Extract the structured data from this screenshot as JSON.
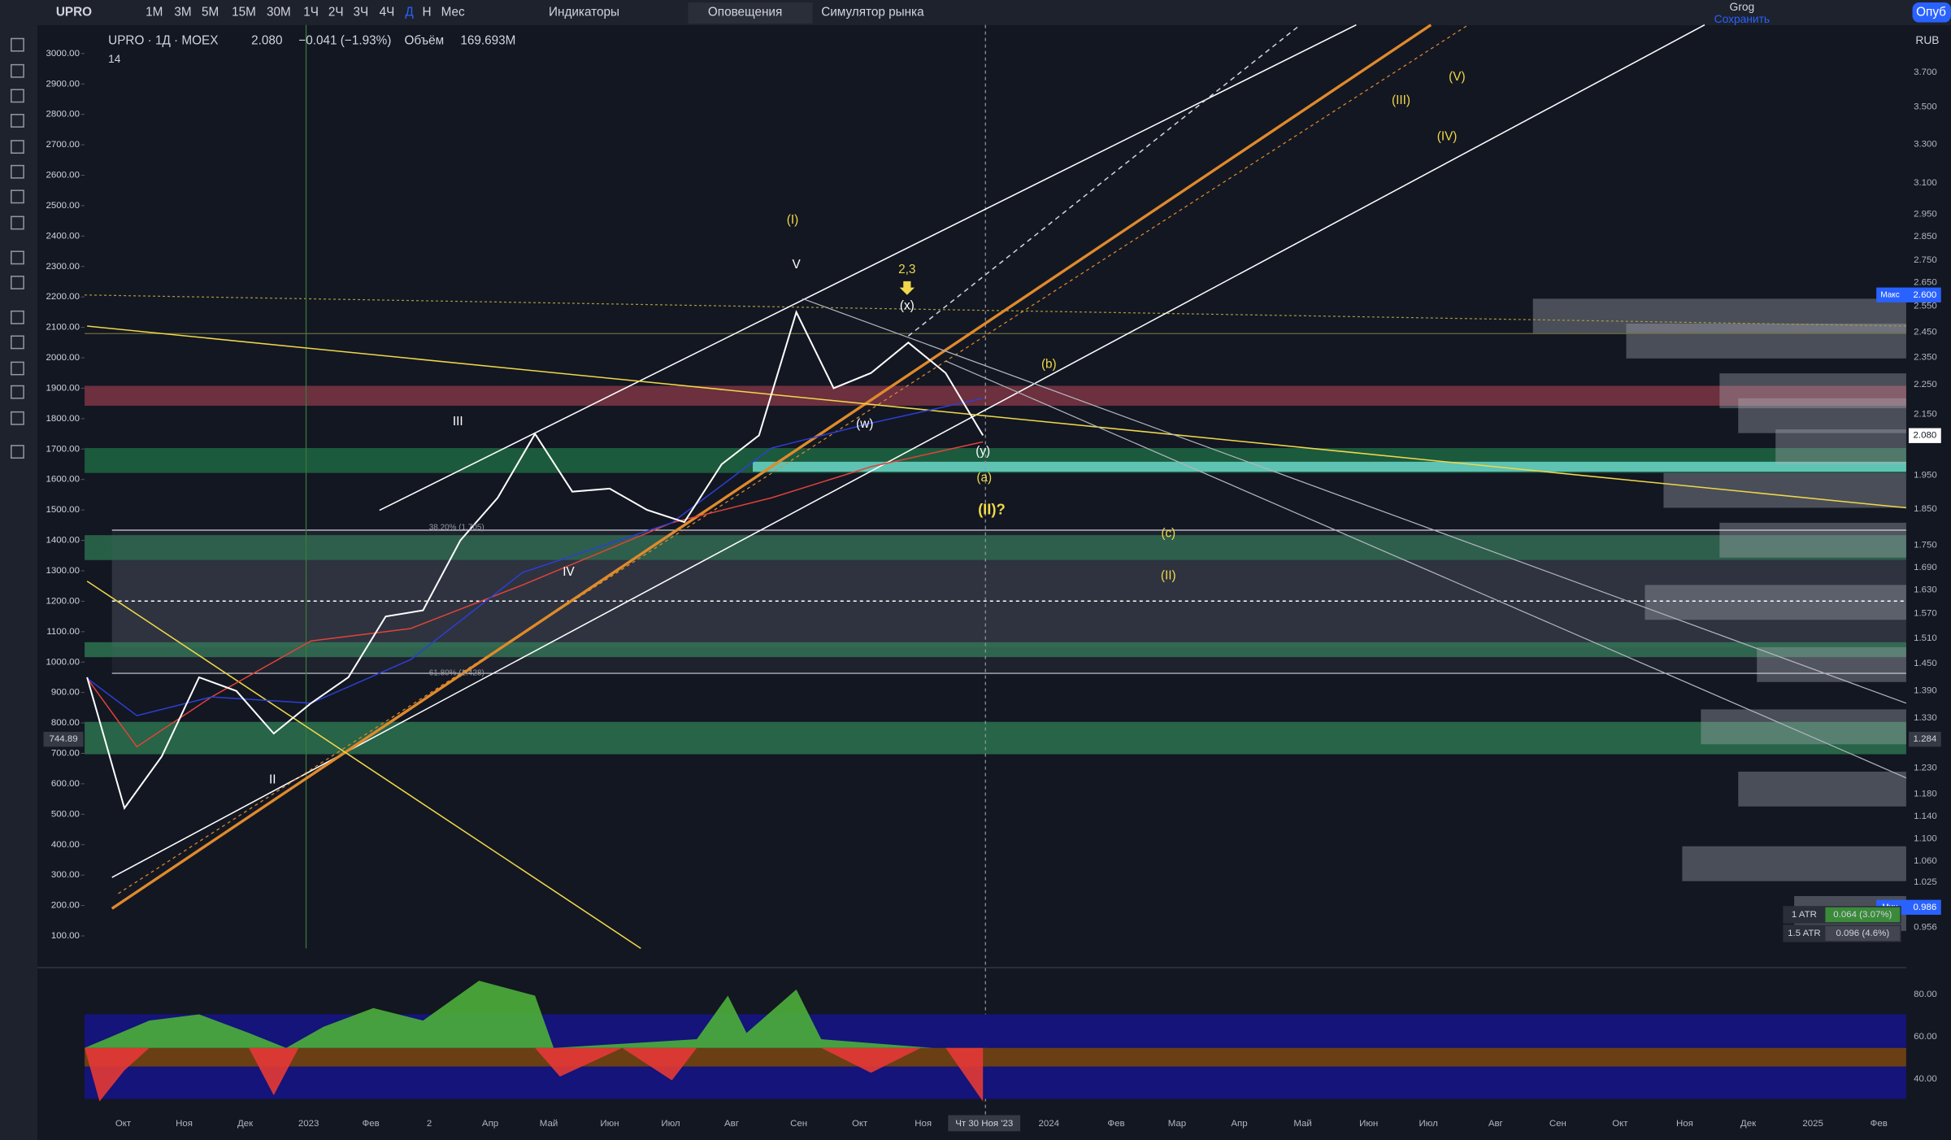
{
  "toolbar": {
    "symbol": "UPRO",
    "intervals": [
      "1М",
      "3М",
      "5М",
      "15М",
      "30М",
      "1Ч",
      "2Ч",
      "3Ч",
      "4Ч",
      "Д",
      "Н",
      "Мес"
    ],
    "indicators": "Индикаторы",
    "alerts": "Оповещения",
    "replay": "Симулятор рынка",
    "user": "Grog",
    "save": "Сохранить",
    "publish": "Опуб",
    "currency": "RUB"
  },
  "legend": {
    "symbol": "UPRO · 1Д · MOEX",
    "price": "2.080",
    "change": "−0.041 (−1.93%)",
    "volume_label": "Объём",
    "volume": "169.693M",
    "length": "14"
  },
  "price_axis_left": {
    "ticks": [
      {
        "value": 3000,
        "label": "3000.00"
      },
      {
        "value": 2900,
        "label": "2900.00"
      },
      {
        "value": 2800,
        "label": "2800.00"
      },
      {
        "value": 2700,
        "label": "2700.00"
      },
      {
        "value": 2600,
        "label": "2600.00"
      },
      {
        "value": 2500,
        "label": "2500.00"
      },
      {
        "value": 2400,
        "label": "2400.00"
      },
      {
        "value": 2300,
        "label": "2300.00"
      },
      {
        "value": 2200,
        "label": "2200.00"
      },
      {
        "value": 2100,
        "label": "2100.00"
      },
      {
        "value": 2000,
        "label": "2000.00"
      },
      {
        "value": 1900,
        "label": "1900.00"
      },
      {
        "value": 1800,
        "label": "1800.00"
      },
      {
        "value": 1700,
        "label": "1700.00"
      },
      {
        "value": 1600,
        "label": "1600.00"
      },
      {
        "value": 1500,
        "label": "1500.00"
      },
      {
        "value": 1400,
        "label": "1400.00"
      },
      {
        "value": 1300,
        "label": "1300.00"
      },
      {
        "value": 1200,
        "label": "1200.00"
      },
      {
        "value": 1100,
        "label": "1100.00"
      },
      {
        "value": 1000,
        "label": "1000.00"
      },
      {
        "value": 900,
        "label": "900.00"
      },
      {
        "value": 800,
        "label": "800.00"
      },
      {
        "value": 700,
        "label": "700.00"
      },
      {
        "value": 600,
        "label": "600.00"
      },
      {
        "value": 500,
        "label": "500.00"
      },
      {
        "value": 400,
        "label": "400.00"
      },
      {
        "value": 300,
        "label": "300.00"
      },
      {
        "value": 200,
        "label": "200.00"
      },
      {
        "value": 100,
        "label": "100.00"
      }
    ],
    "marker": "744.89"
  },
  "price_axis_right": {
    "labels": [
      "3.700",
      "3.500",
      "3.300",
      "3.100",
      "2.950",
      "2.850",
      "2.750",
      "2.650",
      "2.550",
      "2.450",
      "2.350",
      "2.250",
      "2.150",
      "1.950",
      "1.850",
      "1.750",
      "1.690",
      "1.630",
      "1.570",
      "1.510",
      "1.450",
      "1.390",
      "1.330",
      "1.230",
      "1.180",
      "1.140",
      "1.100",
      "1.060",
      "1.025",
      "0.956"
    ],
    "current": "2.080",
    "max_label": "Макс",
    "max": "2.600",
    "marker": "1.284",
    "min_label": "Мин",
    "min": "0.986"
  },
  "price_series": {
    "values": [
      950,
      520,
      690,
      950,
      905,
      765,
      865,
      950,
      1150,
      1170,
      1400,
      1540,
      1750,
      1560,
      1570,
      1500,
      1460,
      1650,
      1745,
      2150,
      1900,
      1950,
      2050,
      1950,
      1745
    ]
  },
  "time_axis": [
    "Окт",
    "Ноя",
    "Дек",
    "2023",
    "Фев",
    "2",
    "Апр",
    "Май",
    "Июн",
    "Июл",
    "Авг",
    "Сен",
    "Окт",
    "Ноя",
    "2024",
    "Фев",
    "Мар",
    "Апр",
    "Май",
    "Июн",
    "Июл",
    "Авг",
    "Сен",
    "Окт",
    "Ноя",
    "Дек",
    "2025",
    "Фев"
  ],
  "cursor_date": "Чт 30 Ноя '23",
  "annotations": [
    "(I)",
    "V",
    "2,3",
    "(x)",
    "(b)",
    "(w)",
    "(y)",
    "(a)",
    "(II)?",
    "(c)",
    "(II)",
    "III",
    "IV",
    "II",
    "(III)",
    "(V)",
    "(IV)"
  ],
  "fib_labels": [
    "38.20% (1.705)",
    "61.80% (1.428)"
  ],
  "oscillator_ticks": [
    "80.00",
    "60.00",
    "40.00"
  ],
  "atr": [
    {
      "label": "1 ATR",
      "value": "0.064 (3.07%)"
    },
    {
      "label": "1.5 ATR",
      "value": "0.096 (4.6%)"
    }
  ]
}
